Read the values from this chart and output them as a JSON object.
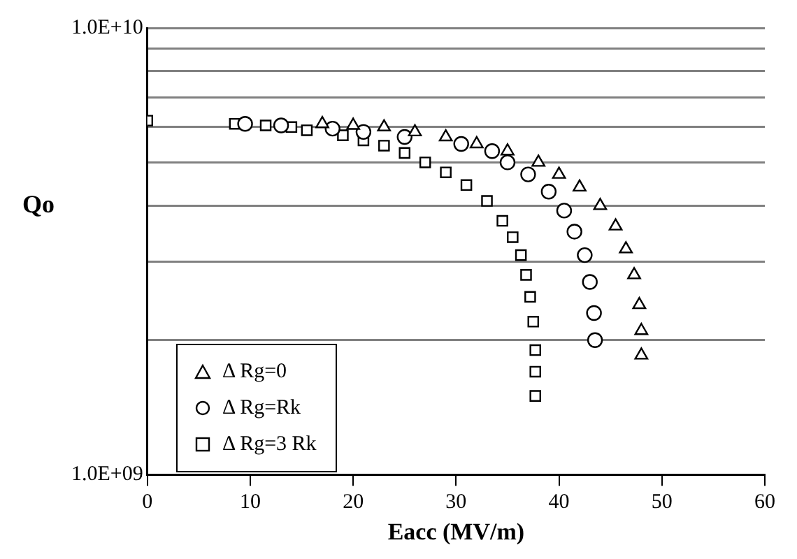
{
  "chart_data": {
    "type": "scatter",
    "xlabel": "Eacc (MV/m)",
    "ylabel": "Qo",
    "log": "y",
    "grid": "y",
    "legend": "bottom left",
    "xlim": [
      0,
      60
    ],
    "xticks": [
      0,
      10,
      20,
      30,
      40,
      50,
      60
    ],
    "ylim": [
      1000000000,
      10000000000
    ],
    "yticks": [
      {
        "value": 1000000000,
        "label": "1.0E+09"
      },
      {
        "value": 2000000000,
        "label": null
      },
      {
        "value": 3000000000,
        "label": null
      },
      {
        "value": 4000000000,
        "label": null
      },
      {
        "value": 5000000000,
        "label": null
      },
      {
        "value": 6000000000,
        "label": null
      },
      {
        "value": 7000000000,
        "label": null
      },
      {
        "value": 8000000000,
        "label": null
      },
      {
        "value": 9000000000,
        "label": null
      },
      {
        "value": 10000000000,
        "label": "1.0E+10"
      }
    ],
    "series": [
      {
        "name": "Δ Rg=0",
        "color": "#000000",
        "marker": "triangle",
        "x": [
          17,
          20,
          23,
          26,
          29,
          32,
          35,
          38,
          40,
          42,
          44,
          45.5,
          46.5,
          47.3,
          47.8,
          48,
          48
        ],
        "values": [
          6100000000.0,
          6050000000.0,
          6000000000.0,
          5850000000.0,
          5700000000.0,
          5500000000.0,
          5300000000.0,
          5000000000.0,
          4700000000.0,
          4400000000.0,
          4000000000.0,
          3600000000.0,
          3200000000.0,
          2800000000.0,
          2400000000.0,
          2100000000.0,
          1850000000.0
        ]
      },
      {
        "name": "Δ Rg=Rk",
        "color": "#000000",
        "marker": "circle",
        "x": [
          9.5,
          13,
          18,
          21,
          25,
          30.5,
          33.5,
          35,
          37,
          39,
          40.5,
          41.5,
          42.5,
          43,
          43.4,
          43.5
        ],
        "values": [
          6100000000.0,
          6050000000.0,
          5950000000.0,
          5850000000.0,
          5700000000.0,
          5500000000.0,
          5300000000.0,
          5000000000.0,
          4700000000.0,
          4300000000.0,
          3900000000.0,
          3500000000.0,
          3100000000.0,
          2700000000.0,
          2300000000.0,
          2000000000.0
        ]
      },
      {
        "name": "Δ Rg=3 Rk",
        "color": "#000000",
        "marker": "square",
        "x": [
          0,
          8.5,
          11.5,
          14,
          15.5,
          19,
          21,
          23,
          25,
          27,
          29,
          31,
          33,
          34.5,
          35.5,
          36.3,
          36.8,
          37.2,
          37.5,
          37.7,
          37.7,
          37.7
        ],
        "values": [
          6200000000.0,
          6100000000.0,
          6050000000.0,
          6000000000.0,
          5900000000.0,
          5750000000.0,
          5600000000.0,
          5450000000.0,
          5250000000.0,
          5000000000.0,
          4750000000.0,
          4450000000.0,
          4100000000.0,
          3700000000.0,
          3400000000.0,
          3100000000.0,
          2800000000.0,
          2500000000.0,
          2200000000.0,
          1900000000.0,
          1700000000.0,
          1500000000.0
        ]
      }
    ]
  }
}
